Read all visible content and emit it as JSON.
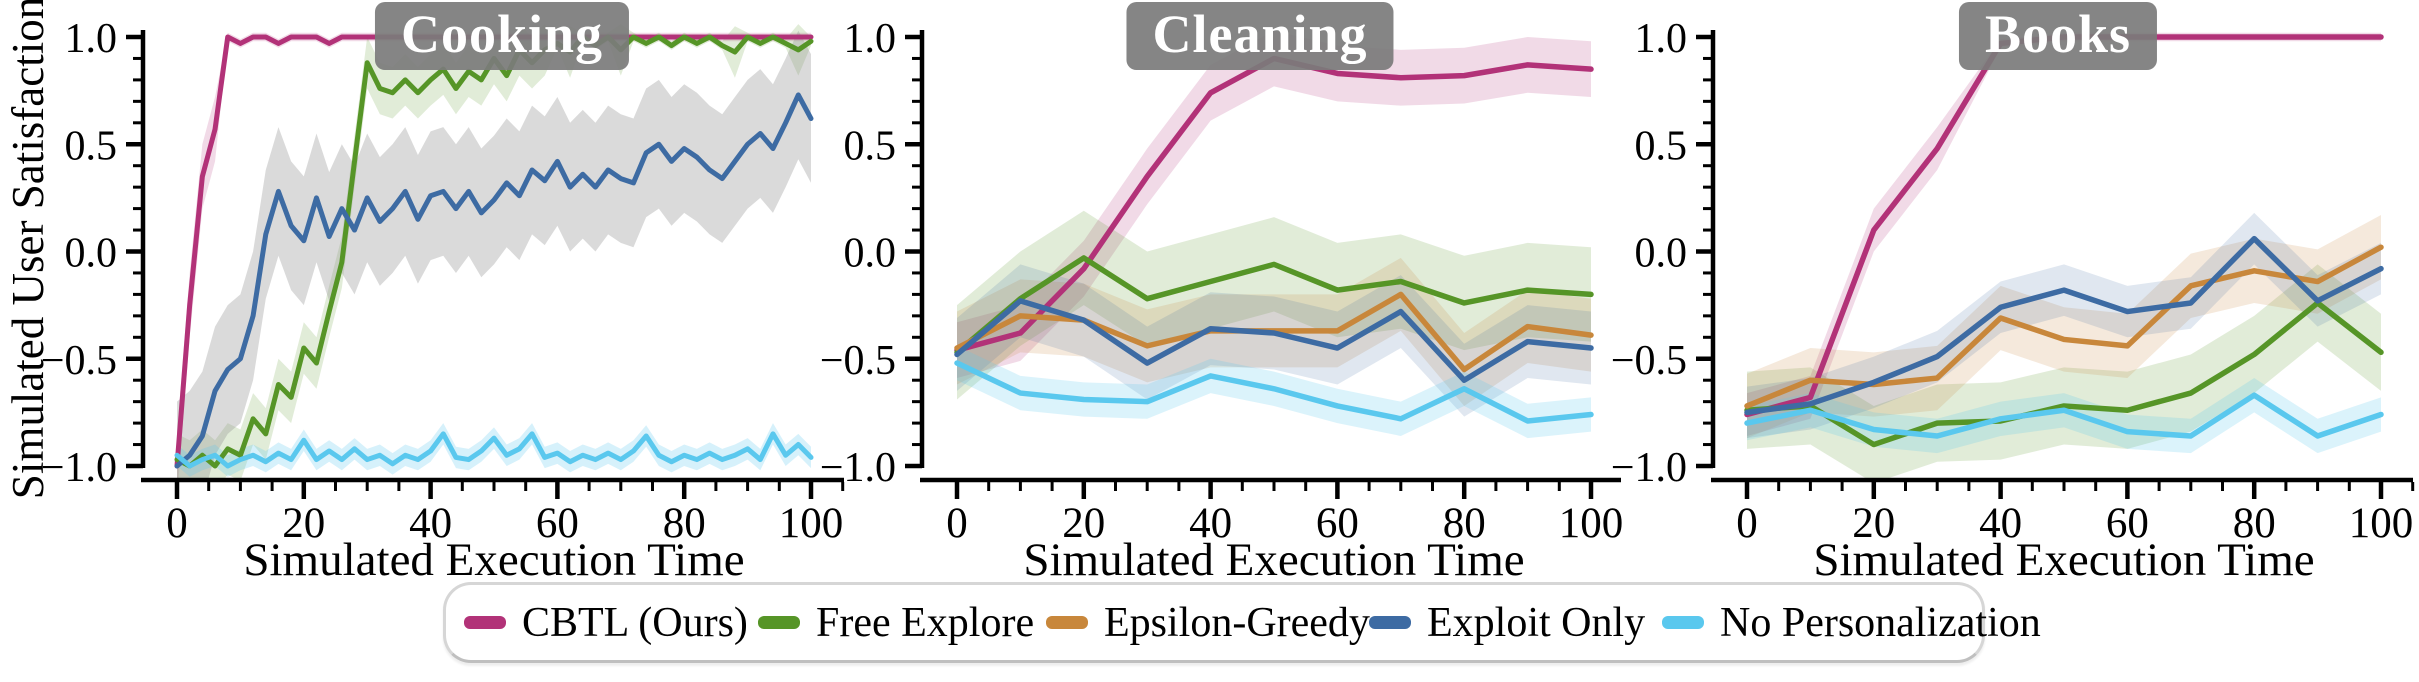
{
  "figure": {
    "ylabel": "Simulated User Satisfaction",
    "xlabel": "Simulated Execution Time",
    "panel_titles": [
      "Cooking",
      "Cleaning",
      "Books"
    ],
    "title_box_color": "#7b7b7b",
    "axis_color": "#000000"
  },
  "legend": {
    "items": [
      {
        "label": "CBTL (Ours)",
        "color": "#b23278"
      },
      {
        "label": "Free Explore",
        "color": "#569527"
      },
      {
        "label": "Epsilon-Greedy",
        "color": "#c8873b"
      },
      {
        "label": "Exploit Only",
        "color": "#3d6ba3"
      },
      {
        "label": "No Personalization",
        "color": "#5ac8ee"
      }
    ]
  },
  "chart_data": [
    {
      "type": "line",
      "title": "Cooking",
      "xlabel": "Simulated Execution Time",
      "ylabel": "Simulated User Satisfaction",
      "xlim": [
        -5,
        105
      ],
      "ylim": [
        -1.07,
        1.07
      ],
      "xticks": [
        0,
        20,
        40,
        60,
        80,
        100
      ],
      "yticks": [
        1.0,
        0.5,
        0.0,
        -0.5,
        -1.0
      ],
      "grid": false,
      "x": [
        0,
        2,
        4,
        6,
        8,
        10,
        12,
        14,
        16,
        18,
        20,
        22,
        24,
        26,
        28,
        30,
        32,
        34,
        36,
        38,
        40,
        42,
        44,
        46,
        48,
        50,
        52,
        54,
        56,
        58,
        60,
        62,
        64,
        66,
        68,
        70,
        72,
        74,
        76,
        78,
        80,
        82,
        84,
        86,
        88,
        90,
        92,
        94,
        96,
        98,
        100
      ],
      "series": [
        {
          "name": "CBTL (Ours)",
          "color": "#b23278",
          "band_halfwidth": 0.15,
          "band_opacity": 0.18,
          "values": [
            -1.0,
            -0.25,
            0.35,
            0.57,
            1.0,
            0.97,
            1.0,
            1.0,
            0.97,
            1.0,
            1.0,
            1.0,
            0.97,
            1.0,
            1.0,
            1.0,
            1.0,
            1.0,
            1.0,
            1.0,
            1.0,
            1.0,
            1.0,
            1.0,
            1.0,
            1.0,
            1.0,
            1.0,
            1.0,
            1.0,
            1.0,
            1.0,
            1.0,
            1.0,
            1.0,
            1.0,
            1.0,
            1.0,
            1.0,
            1.0,
            1.0,
            1.0,
            1.0,
            1.0,
            1.0,
            1.0,
            1.0,
            1.0,
            1.0,
            1.0,
            1.0
          ]
        },
        {
          "name": "Free Explore",
          "color": "#569527",
          "band_halfwidth": 0.12,
          "band_opacity": 0.18,
          "values": [
            -0.97,
            -1.0,
            -0.95,
            -1.0,
            -0.92,
            -0.95,
            -0.78,
            -0.85,
            -0.62,
            -0.68,
            -0.45,
            -0.52,
            -0.28,
            -0.05,
            0.42,
            0.88,
            0.76,
            0.74,
            0.8,
            0.74,
            0.8,
            0.85,
            0.76,
            0.84,
            0.8,
            0.9,
            0.82,
            0.94,
            0.88,
            0.94,
            0.97,
            0.93,
            1.0,
            0.96,
            1.0,
            0.94,
            1.0,
            0.97,
            1.0,
            0.96,
            1.0,
            0.97,
            1.0,
            0.96,
            0.93,
            1.0,
            0.97,
            1.0,
            0.97,
            0.94,
            0.98
          ]
        },
        {
          "name": "Epsilon-Greedy",
          "color": "#c8873b",
          "visible": false,
          "note": "not visible in this panel",
          "values": []
        },
        {
          "name": "Exploit Only",
          "color": "#3d6ba3",
          "band_halfwidth": 0.3,
          "band_color": "#8f8f8f",
          "band_opacity": 0.33,
          "values": [
            -1.0,
            -0.95,
            -0.86,
            -0.65,
            -0.55,
            -0.5,
            -0.3,
            0.08,
            0.28,
            0.12,
            0.05,
            0.25,
            0.07,
            0.2,
            0.1,
            0.25,
            0.14,
            0.2,
            0.28,
            0.15,
            0.26,
            0.28,
            0.2,
            0.28,
            0.18,
            0.24,
            0.32,
            0.26,
            0.38,
            0.33,
            0.42,
            0.3,
            0.36,
            0.3,
            0.38,
            0.34,
            0.32,
            0.46,
            0.5,
            0.42,
            0.48,
            0.44,
            0.38,
            0.34,
            0.42,
            0.5,
            0.55,
            0.48,
            0.6,
            0.73,
            0.62
          ]
        },
        {
          "name": "No Personalization",
          "color": "#5ac8ee",
          "band_halfwidth": 0.05,
          "band_opacity": 0.25,
          "values": [
            -0.95,
            -1.0,
            -0.97,
            -0.95,
            -1.0,
            -0.97,
            -0.95,
            -0.98,
            -0.94,
            -0.97,
            -0.88,
            -0.97,
            -0.93,
            -0.97,
            -0.92,
            -0.97,
            -0.95,
            -0.99,
            -0.95,
            -0.97,
            -0.93,
            -0.85,
            -0.96,
            -0.97,
            -0.93,
            -0.87,
            -0.95,
            -0.92,
            -0.85,
            -0.96,
            -0.94,
            -0.98,
            -0.95,
            -0.97,
            -0.94,
            -0.97,
            -0.93,
            -0.86,
            -0.95,
            -0.98,
            -0.95,
            -0.97,
            -0.94,
            -0.97,
            -0.95,
            -0.92,
            -0.97,
            -0.85,
            -0.95,
            -0.9,
            -0.96
          ]
        }
      ]
    },
    {
      "type": "line",
      "title": "Cleaning",
      "xlabel": "Simulated Execution Time",
      "xlim": [
        -5,
        105
      ],
      "ylim": [
        -1.07,
        1.07
      ],
      "xticks": [
        0,
        20,
        40,
        60,
        80,
        100
      ],
      "yticks": [
        1.0,
        0.5,
        0.0,
        -0.5,
        -1.0
      ],
      "grid": false,
      "x": [
        0,
        10,
        20,
        30,
        40,
        50,
        60,
        70,
        80,
        90,
        100
      ],
      "series": [
        {
          "name": "CBTL (Ours)",
          "color": "#b23278",
          "band_halfwidth": 0.13,
          "band_opacity": 0.18,
          "values": [
            -0.46,
            -0.38,
            -0.08,
            0.35,
            0.74,
            0.9,
            0.83,
            0.81,
            0.82,
            0.87,
            0.85
          ]
        },
        {
          "name": "Free Explore",
          "color": "#569527",
          "band_halfwidth": 0.22,
          "band_opacity": 0.18,
          "values": [
            -0.47,
            -0.22,
            -0.03,
            -0.22,
            -0.14,
            -0.06,
            -0.18,
            -0.14,
            -0.24,
            -0.18,
            -0.2
          ]
        },
        {
          "name": "Epsilon-Greedy",
          "color": "#c8873b",
          "band_halfwidth": 0.17,
          "band_opacity": 0.18,
          "values": [
            -0.45,
            -0.3,
            -0.32,
            -0.44,
            -0.37,
            -0.37,
            -0.37,
            -0.2,
            -0.55,
            -0.35,
            -0.39
          ]
        },
        {
          "name": "Exploit Only",
          "color": "#3d6ba3",
          "band_halfwidth": 0.17,
          "band_opacity": 0.16,
          "values": [
            -0.48,
            -0.23,
            -0.32,
            -0.52,
            -0.36,
            -0.38,
            -0.45,
            -0.28,
            -0.6,
            -0.42,
            -0.45
          ]
        },
        {
          "name": "No Personalization",
          "color": "#5ac8ee",
          "band_halfwidth": 0.08,
          "band_opacity": 0.22,
          "values": [
            -0.52,
            -0.66,
            -0.69,
            -0.7,
            -0.58,
            -0.64,
            -0.72,
            -0.78,
            -0.64,
            -0.79,
            -0.76
          ]
        }
      ]
    },
    {
      "type": "line",
      "title": "Books",
      "xlabel": "Simulated Execution Time",
      "xlim": [
        -5,
        105
      ],
      "ylim": [
        -1.07,
        1.07
      ],
      "xticks": [
        0,
        20,
        40,
        60,
        80,
        100
      ],
      "yticks": [
        1.0,
        0.5,
        0.0,
        -0.5,
        -1.0
      ],
      "grid": false,
      "x": [
        0,
        10,
        20,
        30,
        40,
        50,
        60,
        70,
        80,
        90,
        100
      ],
      "series": [
        {
          "name": "CBTL (Ours)",
          "color": "#b23278",
          "band_halfwidth": 0.1,
          "band_opacity": 0.18,
          "values": [
            -0.76,
            -0.68,
            0.1,
            0.48,
            0.97,
            1.0,
            1.0,
            1.0,
            1.0,
            1.0,
            1.0
          ]
        },
        {
          "name": "Free Explore",
          "color": "#569527",
          "band_halfwidth": 0.18,
          "band_opacity": 0.18,
          "values": [
            -0.74,
            -0.72,
            -0.9,
            -0.8,
            -0.79,
            -0.72,
            -0.74,
            -0.66,
            -0.48,
            -0.24,
            -0.47
          ]
        },
        {
          "name": "Epsilon-Greedy",
          "color": "#c8873b",
          "band_halfwidth": 0.15,
          "band_opacity": 0.18,
          "values": [
            -0.72,
            -0.6,
            -0.62,
            -0.59,
            -0.31,
            -0.41,
            -0.44,
            -0.16,
            -0.09,
            -0.14,
            0.02
          ]
        },
        {
          "name": "Exploit Only",
          "color": "#3d6ba3",
          "band_halfwidth": 0.12,
          "band_opacity": 0.16,
          "values": [
            -0.75,
            -0.71,
            -0.61,
            -0.49,
            -0.26,
            -0.18,
            -0.28,
            -0.24,
            0.06,
            -0.23,
            -0.08
          ]
        },
        {
          "name": "No Personalization",
          "color": "#5ac8ee",
          "band_halfwidth": 0.08,
          "band_opacity": 0.22,
          "values": [
            -0.8,
            -0.74,
            -0.83,
            -0.86,
            -0.78,
            -0.74,
            -0.84,
            -0.86,
            -0.67,
            -0.86,
            -0.76
          ]
        }
      ]
    }
  ]
}
